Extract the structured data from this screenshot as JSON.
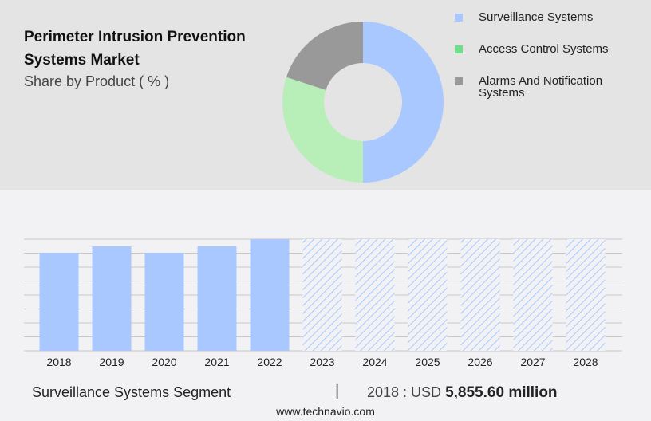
{
  "title": "Perimeter Intrusion Prevention Systems Market",
  "subtitle": "Share by Product ( % )",
  "chart_data": [
    {
      "type": "pie",
      "variant": "donut",
      "legend_position": "right",
      "slices": [
        {
          "name": "Surveillance Systems",
          "value": 50,
          "color": "#a8c8ff"
        },
        {
          "name": "Access Control Systems",
          "value": 30,
          "color": "#b8eeb8"
        },
        {
          "name": "Alarms And Notification Systems",
          "value": 20,
          "color": "#999999"
        }
      ],
      "legend_colors": [
        "#a8c8ff",
        "#6ee08a",
        "#999999"
      ]
    },
    {
      "type": "bar",
      "categories": [
        "2018",
        "2019",
        "2020",
        "2021",
        "2022",
        "2023",
        "2024",
        "2025",
        "2026",
        "2027",
        "2028"
      ],
      "values": [
        5855.6,
        6236,
        5855.6,
        6236,
        6665,
        null,
        null,
        null,
        null,
        null,
        null
      ],
      "forecast_from": "2023",
      "color": "#a8c8ff",
      "grid": true,
      "ylim": [
        0,
        6665
      ]
    }
  ],
  "footer": {
    "segment": "Surveillance Systems Segment",
    "separator": "|",
    "year_label": "2018 : USD",
    "value": "5,855.60 million",
    "site": "www.technavio.com"
  }
}
